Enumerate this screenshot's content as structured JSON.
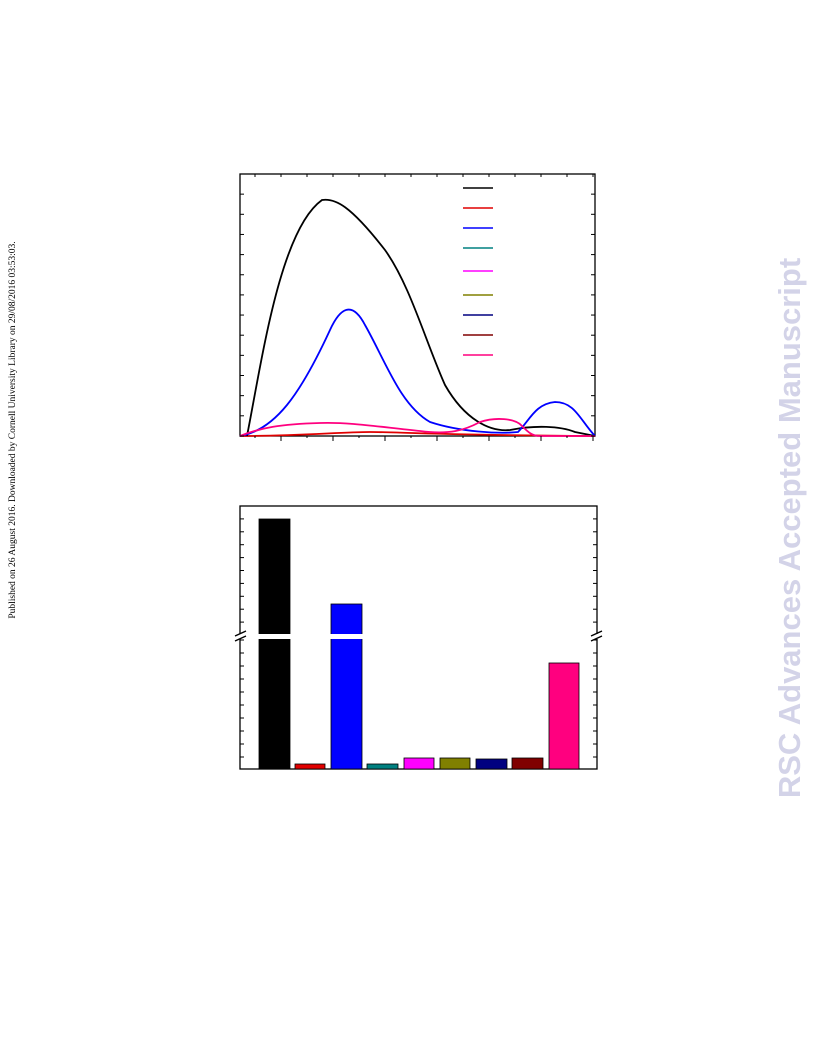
{
  "side_note": "Published on 26 August 2016. Downloaded by Cornell University Library on 29/08/2016 03:53:03.",
  "watermark": "RSC Advances Accepted Manuscript"
}
